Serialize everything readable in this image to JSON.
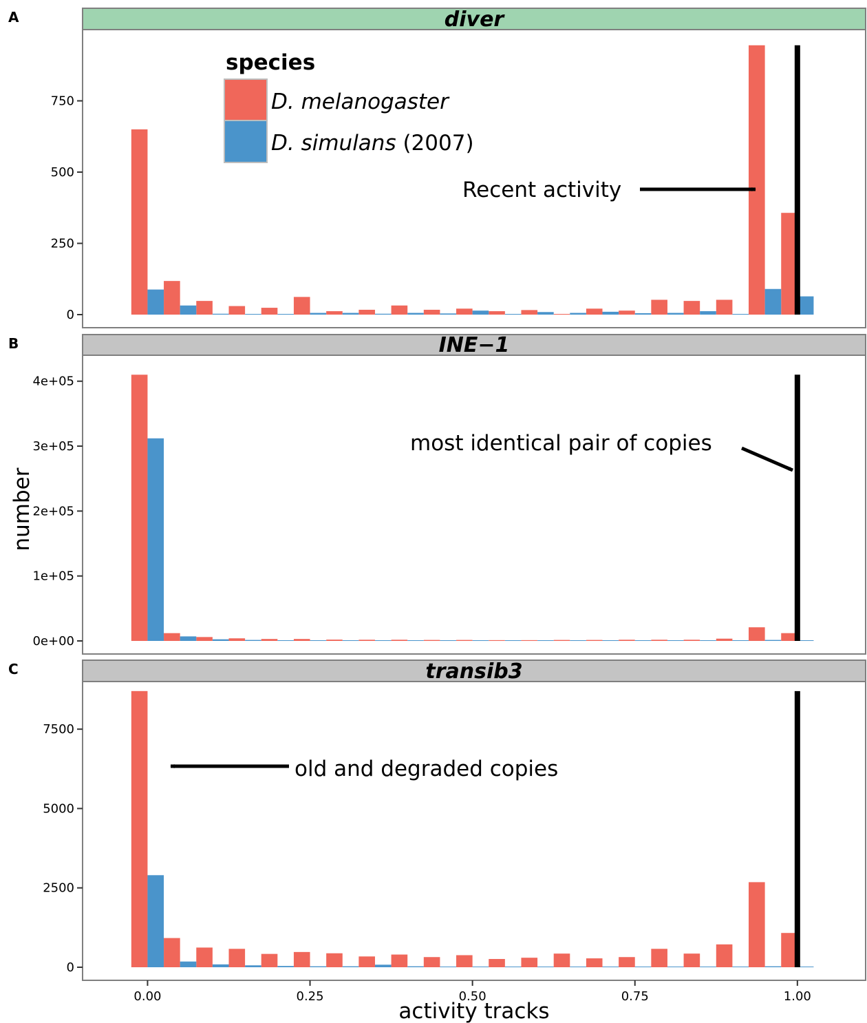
{
  "chart_data": [
    {
      "panel_letter": "A",
      "type": "bar",
      "facet_title": "diver",
      "strip_color": "#9FD4B0",
      "ylim": [
        0,
        1000
      ],
      "yticks": [
        0,
        250,
        500,
        750
      ],
      "ytick_labels": [
        "0",
        "250",
        "500",
        "750"
      ],
      "bin_centers": [
        0.0,
        0.05,
        0.1,
        0.15,
        0.2,
        0.25,
        0.3,
        0.35,
        0.4,
        0.45,
        0.5,
        0.55,
        0.6,
        0.65,
        0.7,
        0.75,
        0.8,
        0.85,
        0.9,
        0.95,
        1.0
      ],
      "series": [
        {
          "name": "D. melanogaster",
          "values": [
            650,
            118,
            48,
            30,
            24,
            62,
            12,
            17,
            32,
            17,
            21,
            12,
            16,
            2,
            21,
            14,
            52,
            48,
            52,
            945,
            357
          ]
        },
        {
          "name": "D. simulans (2007)",
          "values": [
            88,
            32,
            3,
            1,
            1,
            6,
            6,
            3,
            6,
            4,
            14,
            1,
            9,
            6,
            10,
            5,
            6,
            12,
            1,
            90,
            64
          ]
        }
      ],
      "vline": {
        "x": 1.0,
        "ymax": 945
      },
      "annotation": {
        "text": "Recent activity"
      }
    },
    {
      "panel_letter": "B",
      "type": "bar",
      "facet_title": "INE−1",
      "strip_color": "#C4C4C4",
      "ylim": [
        0,
        440000
      ],
      "yticks": [
        0,
        100000,
        200000,
        300000,
        400000
      ],
      "ytick_labels": [
        "0e+00",
        "1e+05",
        "2e+05",
        "3e+05",
        "4e+05"
      ],
      "bin_centers": [
        0.0,
        0.05,
        0.1,
        0.15,
        0.2,
        0.25,
        0.3,
        0.35,
        0.4,
        0.45,
        0.5,
        0.55,
        0.6,
        0.65,
        0.7,
        0.75,
        0.8,
        0.85,
        0.9,
        0.95,
        1.0
      ],
      "series": [
        {
          "name": "D. melanogaster",
          "values": [
            410000,
            12000,
            6000,
            4000,
            3000,
            3000,
            2000,
            1800,
            1800,
            1500,
            1500,
            1200,
            1200,
            1500,
            1500,
            1800,
            1800,
            1800,
            3500,
            21000,
            12000
          ]
        },
        {
          "name": "D. simulans (2007)",
          "values": [
            312000,
            7000,
            2500,
            1500,
            800,
            800,
            500,
            500,
            500,
            400,
            400,
            400,
            400,
            400,
            400,
            400,
            400,
            400,
            400,
            1500,
            1000
          ]
        }
      ],
      "vline": {
        "x": 1.0,
        "ymax": 410000
      },
      "annotation": {
        "text": "most identical pair of copies"
      }
    },
    {
      "panel_letter": "C",
      "type": "bar",
      "facet_title": "transib3",
      "strip_color": "#C4C4C4",
      "ylim": [
        0,
        9000
      ],
      "yticks": [
        0,
        2500,
        5000,
        7500
      ],
      "ytick_labels": [
        "0",
        "2500",
        "5000",
        "7500"
      ],
      "bin_centers": [
        0.0,
        0.05,
        0.1,
        0.15,
        0.2,
        0.25,
        0.3,
        0.35,
        0.4,
        0.45,
        0.5,
        0.55,
        0.6,
        0.65,
        0.7,
        0.75,
        0.8,
        0.85,
        0.9,
        0.95,
        1.0
      ],
      "series": [
        {
          "name": "D. melanogaster",
          "values": [
            8700,
            920,
            620,
            580,
            420,
            480,
            440,
            340,
            400,
            320,
            380,
            260,
            300,
            430,
            280,
            320,
            580,
            430,
            720,
            2680,
            1080
          ]
        },
        {
          "name": "D. simulans (2007)",
          "values": [
            2900,
            180,
            90,
            60,
            40,
            30,
            30,
            80,
            30,
            20,
            20,
            20,
            20,
            20,
            20,
            20,
            20,
            20,
            20,
            30,
            20
          ]
        }
      ],
      "vline": {
        "x": 1.0,
        "ymax": 8700
      },
      "annotation": {
        "text": "old and degraded copies"
      }
    }
  ],
  "axes": {
    "xlabel": "activity tracks",
    "ylabel": "number",
    "xlim": [
      -0.1,
      1.105
    ],
    "xticks": [
      0.0,
      0.25,
      0.5,
      0.75,
      1.0
    ],
    "xtick_labels": [
      "0.00",
      "0.25",
      "0.50",
      "0.75",
      "1.00"
    ]
  },
  "legend": {
    "title": "species",
    "placement": "top-left inside panel A",
    "entries": [
      {
        "italic": "D. melanogaster",
        "suffix": "",
        "color": "#F0675A"
      },
      {
        "italic": "D. simulans",
        "suffix": " (2007)",
        "color": "#4A94CB"
      }
    ]
  },
  "colors": {
    "melanogaster": "#F0675A",
    "simulans": "#4A94CB",
    "vline": "#000000",
    "panel_border": "#7F7F7F"
  }
}
